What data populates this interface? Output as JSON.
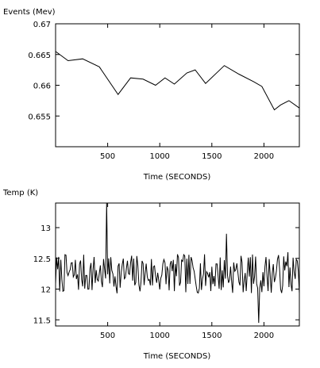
{
  "chart_data": [
    {
      "type": "line",
      "title": "Events (Mev)",
      "xlabel": "Time (SECONDS)",
      "ylabel": "",
      "xlim": [
        0,
        2340
      ],
      "ylim": [
        0.65,
        0.67
      ],
      "x_ticks": [
        500,
        1000,
        1500,
        2000
      ],
      "y_ticks": [
        0.655,
        0.66,
        0.665,
        0.67
      ],
      "y_tick_labels": [
        "0.655",
        "0.66",
        "0.665",
        "0.67"
      ],
      "grid": false,
      "series": [
        {
          "x": [
            0,
            120,
            260,
            420,
            600,
            720,
            840,
            960,
            1050,
            1140,
            1260,
            1340,
            1440,
            1620,
            1760,
            1900,
            1980,
            2100,
            2160,
            2240,
            2340
          ],
          "y": [
            0.6655,
            0.664,
            0.6643,
            0.663,
            0.6585,
            0.6612,
            0.661,
            0.66,
            0.6612,
            0.6602,
            0.662,
            0.6625,
            0.6603,
            0.6632,
            0.6618,
            0.6606,
            0.6598,
            0.656,
            0.6568,
            0.6575,
            0.6563
          ]
        }
      ]
    },
    {
      "type": "line",
      "title": "Temp (K)",
      "xlabel": "Time (SECONDS)",
      "ylabel": "",
      "xlim": [
        0,
        2340
      ],
      "ylim": [
        11.4,
        13.4
      ],
      "x_ticks": [
        500,
        1000,
        1500,
        2000
      ],
      "y_ticks": [
        11.5,
        12,
        12.5,
        13
      ],
      "y_tick_labels": [
        "11.5",
        "12",
        "12.5",
        "13"
      ],
      "grid": false,
      "series": [
        {
          "noise": {
            "base": 12.25,
            "amplitude": 0.32,
            "step": 10,
            "seed": 7
          },
          "spikes": [
            {
              "x": 490,
              "y": 13.4
            },
            {
              "x": 505,
              "y": 12.5
            },
            {
              "x": 1640,
              "y": 12.9
            },
            {
              "x": 1950,
              "y": 11.45
            },
            {
              "x": 2230,
              "y": 12.6
            }
          ]
        }
      ]
    }
  ]
}
